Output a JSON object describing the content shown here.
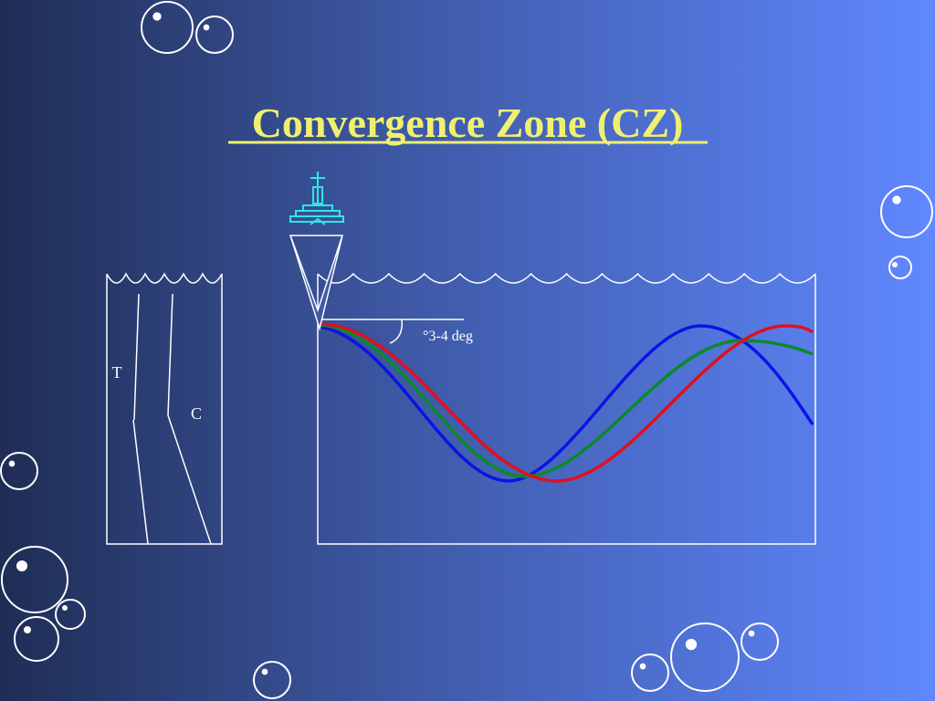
{
  "title": "Convergence Zone (CZ)",
  "profile": {
    "t_label": "T",
    "c_label": "C"
  },
  "annotation": "°3-4 deg"
}
